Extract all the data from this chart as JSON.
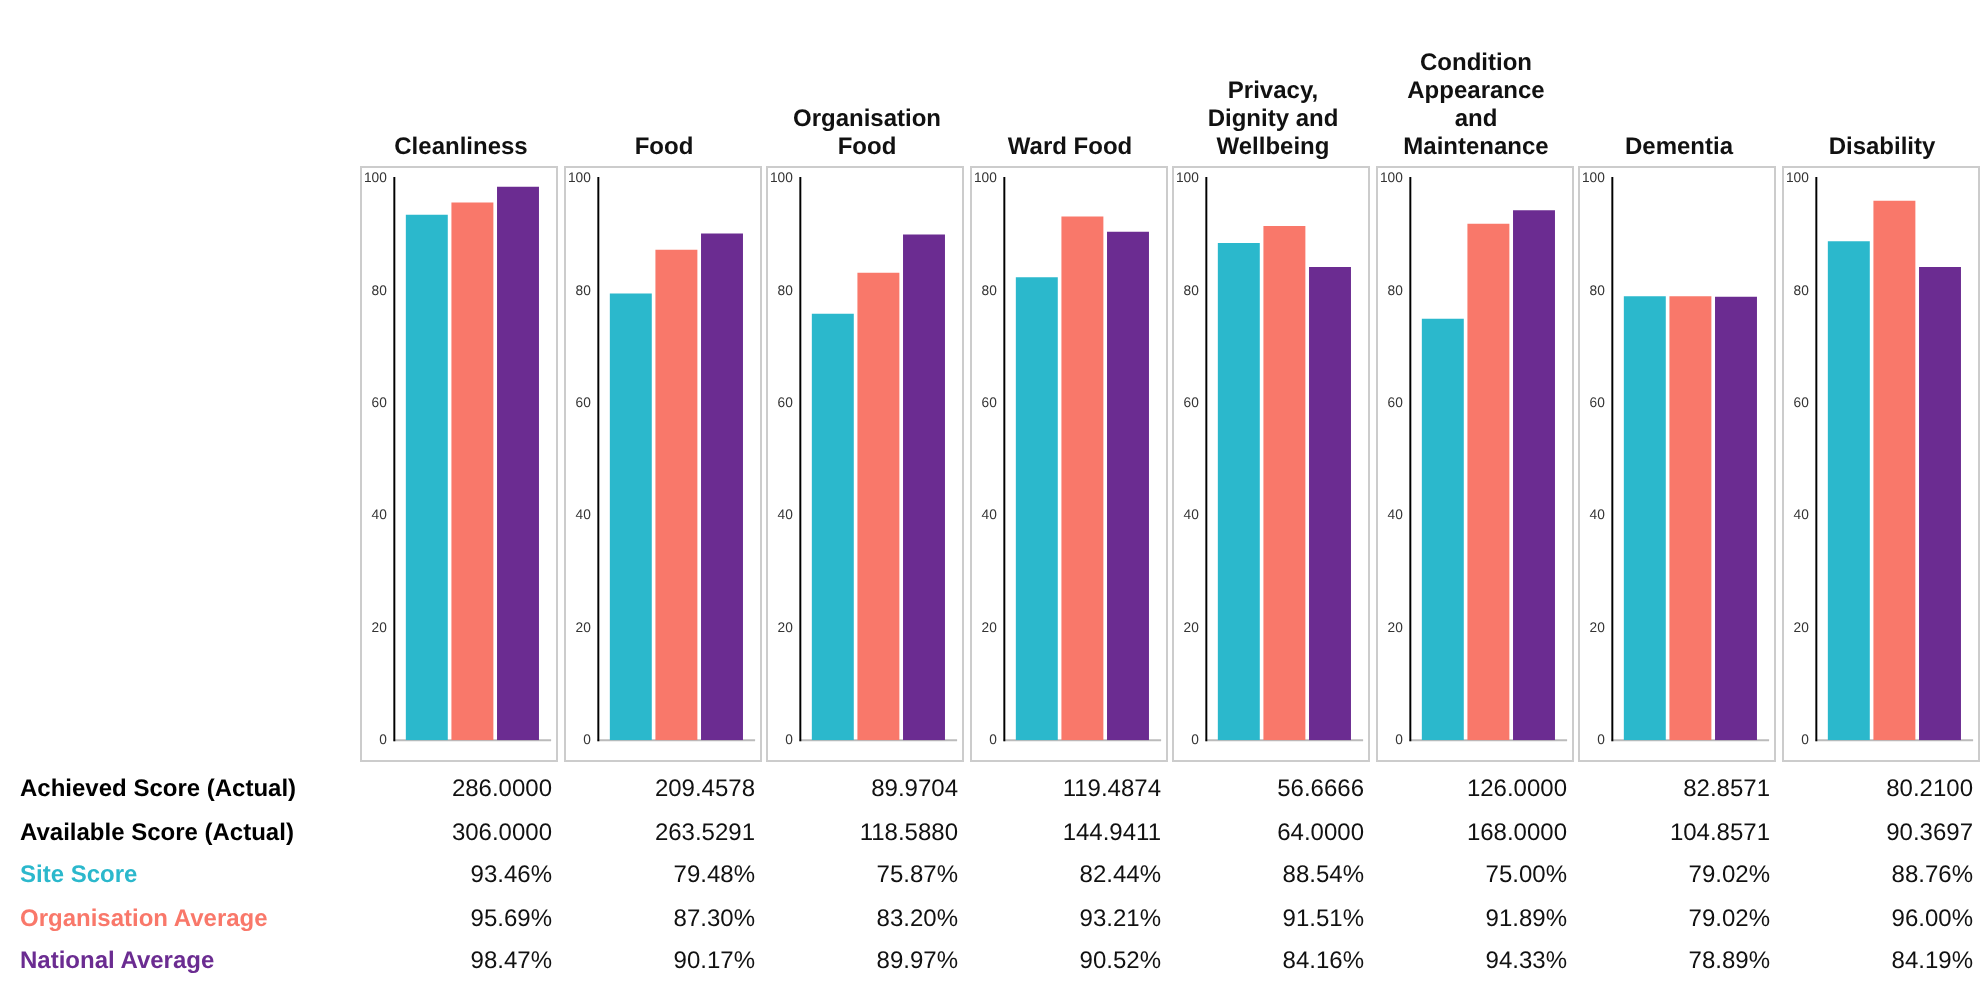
{
  "chart_data": [
    {
      "type": "bar",
      "title": "Cleanliness",
      "categories": [
        null
      ],
      "ylim": [
        0,
        100
      ],
      "yticks": [
        0,
        20,
        40,
        60,
        80,
        100
      ],
      "annotations": [
        "286.0000",
        "306.0000"
      ],
      "series": [
        {
          "name": "Site Score",
          "color": "#2bb8cc",
          "values": [
            93.5
          ]
        },
        {
          "name": "Organisation Average",
          "color": "#f9786a",
          "values": [
            95.7
          ]
        },
        {
          "name": "National Average",
          "color": "#6b2c91",
          "values": [
            98.5
          ]
        }
      ]
    },
    {
      "type": "bar",
      "title": "Food",
      "categories": [
        null
      ],
      "ylim": [
        0,
        100
      ],
      "yticks": [
        0,
        20,
        40,
        60,
        80,
        100
      ],
      "annotations": [
        "209.4578",
        "263.5291"
      ],
      "series": [
        {
          "color": "#2bb8cc",
          "values": [
            79.5
          ]
        },
        {
          "color": "#f9786a",
          "values": [
            87.3
          ]
        },
        {
          "color": "#6b2c91",
          "values": [
            90.2
          ]
        }
      ]
    },
    {
      "type": "bar",
      "title": "Organisation Food",
      "categories": [
        null
      ],
      "ylim": [
        0,
        100
      ],
      "yticks": [
        0,
        20,
        40,
        60,
        80,
        100
      ],
      "annotations": [
        "89.9704",
        "118.5880"
      ],
      "series": [
        {
          "color": "#2bb8cc",
          "values": [
            75.9
          ]
        },
        {
          "color": "#f9786a",
          "values": [
            83.2
          ]
        },
        {
          "color": "#6b2c91",
          "values": [
            90.0
          ]
        }
      ]
    },
    {
      "type": "bar",
      "title": "Ward Food",
      "categories": [
        null
      ],
      "ylim": [
        0,
        100
      ],
      "yticks": [
        0,
        20,
        40,
        60,
        80,
        100
      ],
      "annotations": [
        "119.4874",
        "144.9411"
      ],
      "series": [
        {
          "color": "#2bb8cc",
          "values": [
            82.4
          ]
        },
        {
          "color": "#f9786a",
          "values": [
            93.2
          ]
        },
        {
          "color": "#6b2c91",
          "values": [
            90.5
          ]
        }
      ]
    },
    {
      "type": "bar",
      "title": "Privacy, Dignity and Wellbeing",
      "categories": [
        null
      ],
      "ylim": [
        0,
        100
      ],
      "yticks": [
        0,
        20,
        40,
        60,
        80,
        100
      ],
      "annotations": [
        "56.6666",
        "64.0000"
      ],
      "series": [
        {
          "color": "#2bb8cc",
          "values": [
            88.5
          ]
        },
        {
          "color": "#f9786a",
          "values": [
            91.5
          ]
        },
        {
          "color": "#6b2c91",
          "values": [
            84.2
          ]
        }
      ]
    },
    {
      "type": "bar",
      "title": "Condition Appearance and Maintenance",
      "categories": [
        null
      ],
      "ylim": [
        0,
        100
      ],
      "yticks": [
        0,
        20,
        40,
        60,
        80,
        100
      ],
      "annotations": [
        "126.0000",
        "168.0000"
      ],
      "series": [
        {
          "color": "#2bb8cc",
          "values": [
            75.0
          ]
        },
        {
          "color": "#f9786a",
          "values": [
            91.9
          ]
        },
        {
          "color": "#6b2c91",
          "values": [
            94.3
          ]
        }
      ]
    },
    {
      "type": "bar",
      "title": "Dementia",
      "categories": [
        null
      ],
      "ylim": [
        0,
        100
      ],
      "yticks": [
        0,
        20,
        40,
        60,
        80,
        100
      ],
      "annotations": [
        "82.8571",
        "104.8571"
      ],
      "series": [
        {
          "color": "#2bb8cc",
          "values": [
            79.0
          ]
        },
        {
          "color": "#f9786a",
          "values": [
            79.0
          ]
        },
        {
          "color": "#6b2c91",
          "values": [
            78.9
          ]
        }
      ]
    },
    {
      "type": "bar",
      "title": "Disability",
      "categories": [
        null
      ],
      "ylim": [
        0,
        100
      ],
      "yticks": [
        0,
        20,
        40,
        60,
        80,
        100
      ],
      "annotations": [
        "80.2100",
        "90.3697"
      ],
      "series": [
        {
          "color": "#2bb8cc",
          "values": [
            88.8
          ]
        },
        {
          "color": "#f9786a",
          "values": [
            96.0
          ]
        },
        {
          "color": "#6b2c91",
          "values": [
            84.2
          ]
        }
      ]
    },
    {
      "type": "other",
      "annotations": [
        "Achieved Score (Actual)",
        "Available Score (Actual)",
        "93.46%",
        "79.48%",
        "75.87%",
        "82.44%",
        "88.54%",
        "75.00%",
        "79.02%",
        "88.76%",
        "95.69%",
        "87.30%",
        "83.20%",
        "93.21%",
        "91.51%",
        "91.89%",
        "79.02%",
        "96.00%",
        "98.47%",
        "90.17%",
        "89.97%",
        "90.52%",
        "84.16%",
        "94.33%",
        "78.89%",
        "84.19%"
      ]
    }
  ]
}
